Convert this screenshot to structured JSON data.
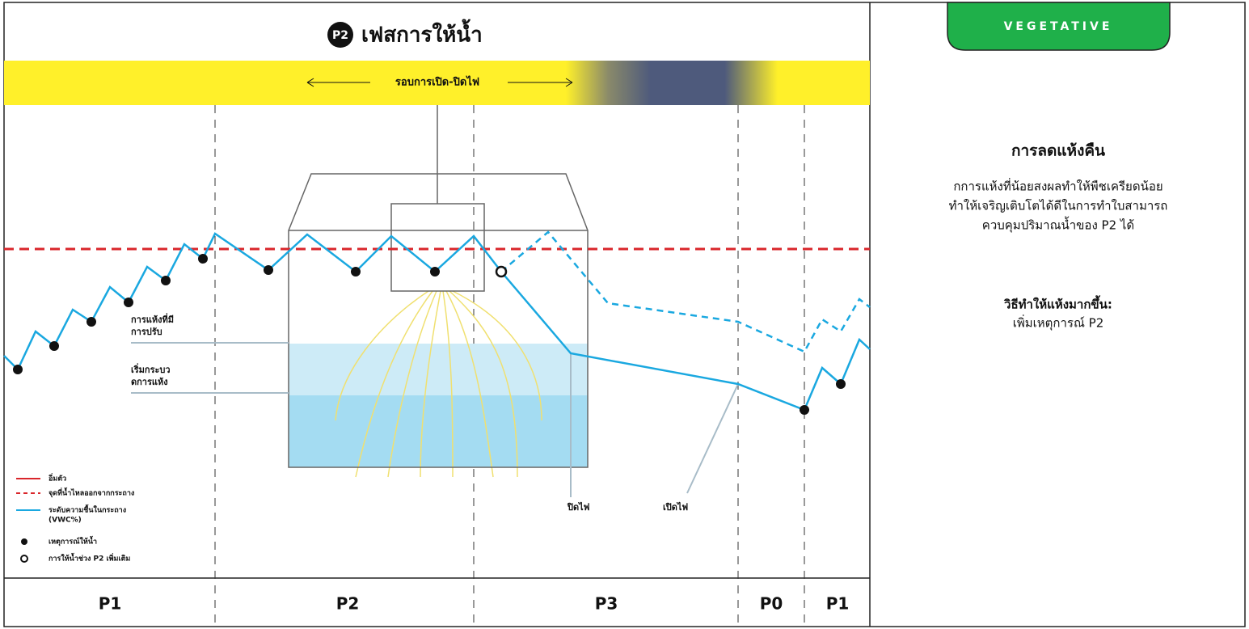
{
  "header": {
    "badge": "P2",
    "title": "เฟสการให้น้ำ"
  },
  "banner": {
    "label": "รอบการเปิด-ปิดไฟ"
  },
  "sidebar": {
    "tag": "VEGETATIVE",
    "heading": "การลดแห้งคืน",
    "body": [
      "กการแห้งที่น้อยสงผลทำให้พืชเครียดน้อย",
      "ทำให้เจริญเติบโตได้ดีในการทำใบสามารถ",
      "ควบคุมปริมาณน้ำของ P2 ได้"
    ],
    "tip_heading": "วิธีทำให้แห้งมากขึ้น:",
    "tip_body": "เพิ่มเหตุการณ์ P2"
  },
  "labels": {
    "adjusted_dryback": [
      "การแห้งที่มี",
      "การปรับ"
    ],
    "dryback_start": [
      "เริ่มกระบว",
      "ดการแห้ง"
    ],
    "lights_off": "ปิดไฟ",
    "lights_on": "เปิดไฟ"
  },
  "legend": [
    "อิ่มตัว",
    "จุดที่น้ำไหลออกจากกระถาง",
    "ระดับความชื้นในกระถาง",
    "(VWC%)",
    "เหตุการณ์ให้น้ำ",
    "การให้น้ำช่วง P2 เพิ่มเติม"
  ],
  "phases": [
    "P1",
    "P2",
    "P3",
    "P0",
    "P1"
  ]
}
